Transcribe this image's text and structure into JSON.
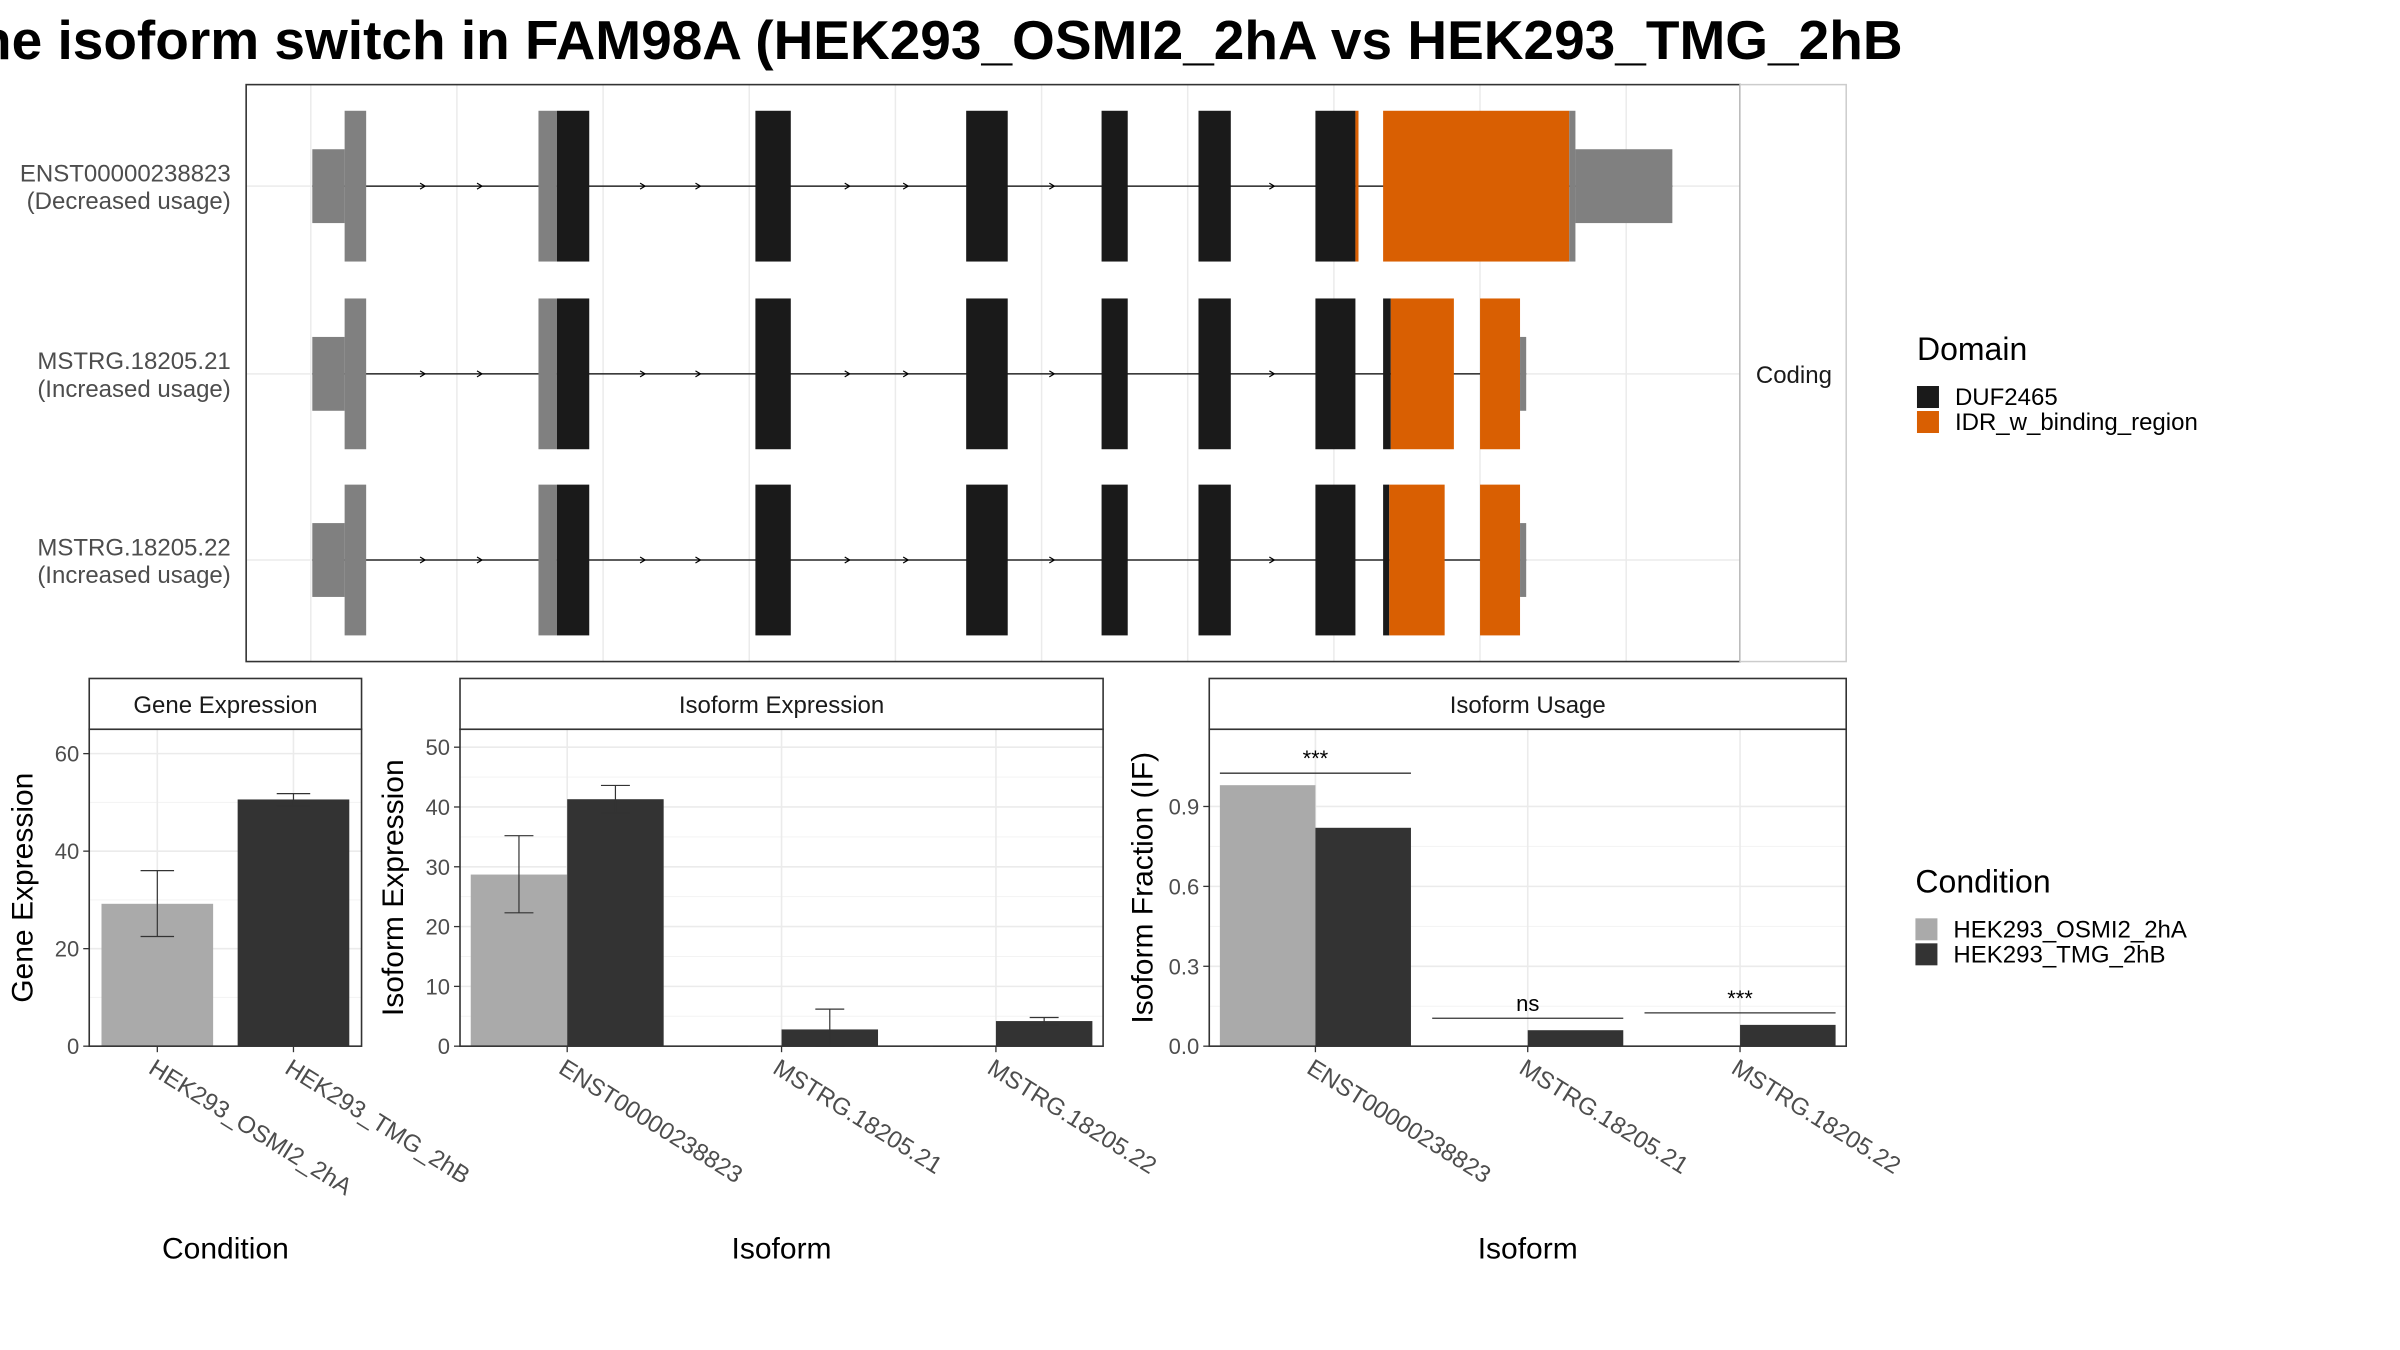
{
  "title": "he isoform switch in FAM98A (HEK293_OSMI2_2hA vs HEK293_TMG_2hB",
  "colors": {
    "utr": "#808080",
    "DUF2465": "#1a1a1a",
    "IDR_w_binding_region": "#d95f02",
    "HEK293_OSMI2_2hA": "#aaaaaa",
    "HEK293_TMG_2hB": "#333333",
    "grid": "#ebebeb"
  },
  "structure": {
    "facet_label": "Coding",
    "transcripts": [
      {
        "label": "ENST00000238823",
        "note": "(Decreased usage)"
      },
      {
        "label": "MSTRG.18205.21",
        "note": "(Increased usage)"
      },
      {
        "label": "MSTRG.18205.22",
        "note": "(Increased usage)"
      }
    ]
  },
  "legends": {
    "domain": {
      "title": "Domain",
      "items": [
        "DUF2465",
        "IDR_w_binding_region"
      ]
    },
    "condition": {
      "title": "Condition",
      "items": [
        "HEK293_OSMI2_2hA",
        "HEK293_TMG_2hB"
      ]
    }
  },
  "chart_data": [
    {
      "type": "bar",
      "title": "Gene Expression",
      "xlabel": "Condition",
      "ylabel": "Gene Expression",
      "categories": [
        "HEK293_OSMI2_2hA",
        "HEK293_TMG_2hB"
      ],
      "values": [
        29.2,
        50.6
      ],
      "error_low": [
        22.5,
        49.3
      ],
      "error_high": [
        36.0,
        51.8
      ],
      "ylim": [
        0,
        65
      ],
      "yticks": [
        0,
        20,
        40,
        60
      ],
      "grid": true
    },
    {
      "type": "bar",
      "title": "Isoform Expression",
      "xlabel": "Isoform",
      "ylabel": "Isoform Expression",
      "categories": [
        "ENST00000238823",
        "MSTRG.18205.21",
        "MSTRG.18205.22"
      ],
      "series": [
        {
          "name": "HEK293_OSMI2_2hA",
          "values": [
            28.7,
            0.0,
            0.0
          ],
          "error_low": [
            22.3,
            0.0,
            0.0
          ],
          "error_high": [
            35.2,
            0.0,
            0.0
          ]
        },
        {
          "name": "HEK293_TMG_2hB",
          "values": [
            41.3,
            2.8,
            4.2
          ],
          "error_low": [
            39.0,
            0.0,
            3.5
          ],
          "error_high": [
            43.6,
            6.2,
            4.8
          ]
        }
      ],
      "ylim": [
        0,
        53
      ],
      "yticks": [
        0,
        10,
        20,
        30,
        40,
        50
      ],
      "grid": true
    },
    {
      "type": "bar",
      "title": "Isoform Usage",
      "xlabel": "Isoform",
      "ylabel": "Isoform Fraction (IF)",
      "categories": [
        "ENST00000238823",
        "MSTRG.18205.21",
        "MSTRG.18205.22"
      ],
      "series": [
        {
          "name": "HEK293_OSMI2_2hA",
          "values": [
            0.98,
            0.0,
            0.0
          ]
        },
        {
          "name": "HEK293_TMG_2hB",
          "values": [
            0.82,
            0.06,
            0.08
          ]
        }
      ],
      "significance": [
        "***",
        "ns",
        "***"
      ],
      "ylim": [
        0,
        1.19
      ],
      "yticks": [
        "0.0",
        "0.3",
        "0.6",
        "0.9"
      ],
      "grid": true
    }
  ]
}
